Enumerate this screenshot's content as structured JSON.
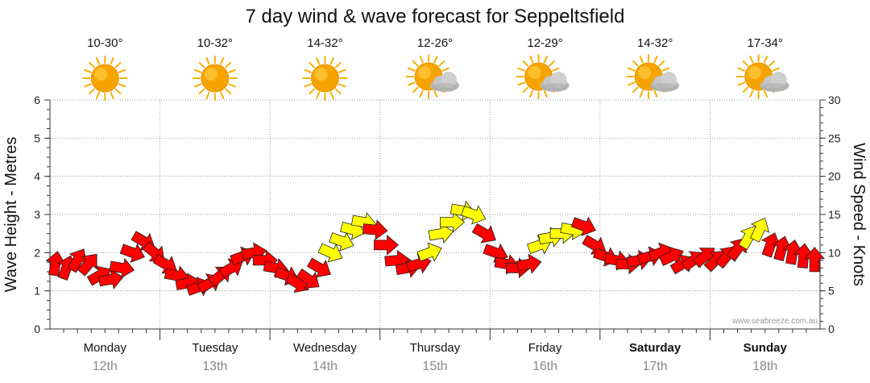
{
  "chart_data": {
    "type": "line",
    "title": "7 day wind & wave forecast for Seppeltsfield",
    "ylabel_left": "Wave Height - Metres",
    "ylabel_right": "Wind Speed - Knots",
    "ylim_left": [
      0,
      6
    ],
    "ylim_right": [
      0,
      30
    ],
    "yticks_left": [
      "0",
      "1",
      "2",
      "3",
      "4",
      "5",
      "6"
    ],
    "yticks_right": [
      "0",
      "5",
      "10",
      "15",
      "20",
      "25",
      "30"
    ],
    "credit": "www.seabreeze.com.au",
    "colors": {
      "strong": "#ff0000",
      "moderate": "#ffff00",
      "outline": "#222222",
      "grid": "#9a9a9a",
      "sun": "#f7a400",
      "cloud": "#b8b8b8"
    },
    "days": [
      {
        "name": "Monday",
        "date": "12th",
        "temp": "10-30°",
        "icon": "sun-icon",
        "bold": false
      },
      {
        "name": "Tuesday",
        "date": "13th",
        "temp": "10-32°",
        "icon": "sun-icon",
        "bold": false
      },
      {
        "name": "Wednesday",
        "date": "14th",
        "temp": "14-32°",
        "icon": "sun-icon",
        "bold": false
      },
      {
        "name": "Thursday",
        "date": "15th",
        "temp": "12-26°",
        "icon": "sun-cloud-icon",
        "bold": false
      },
      {
        "name": "Friday",
        "date": "16th",
        "temp": "12-29°",
        "icon": "sun-cloud-icon",
        "bold": false
      },
      {
        "name": "Saturday",
        "date": "17th",
        "temp": "14-32°",
        "icon": "sun-cloud-icon",
        "bold": true
      },
      {
        "name": "Sunday",
        "date": "18th",
        "temp": "17-34°",
        "icon": "sun-cloud-icon",
        "bold": true
      }
    ],
    "wind_unit": "knots",
    "wind_series": {
      "name": "Wind Speed (knots)",
      "x_days": [
        0.05,
        0.15,
        0.25,
        0.35,
        0.45,
        0.55,
        0.65,
        0.75,
        0.85,
        0.95,
        1.05,
        1.15,
        1.25,
        1.35,
        1.45,
        1.55,
        1.65,
        1.75,
        1.85,
        1.95,
        2.05,
        2.15,
        2.25,
        2.35,
        2.45,
        2.55,
        2.65,
        2.75,
        2.85,
        2.95,
        3.05,
        3.15,
        3.25,
        3.35,
        3.45,
        3.55,
        3.65,
        3.75,
        3.85,
        3.95,
        4.05,
        4.15,
        4.25,
        4.35,
        4.45,
        4.55,
        4.65,
        4.75,
        4.85,
        4.95,
        5.05,
        5.15,
        5.25,
        5.35,
        5.45,
        5.55,
        5.65,
        5.75,
        5.85,
        5.95,
        6.05,
        6.15,
        6.25,
        6.35,
        6.45,
        6.55,
        6.65,
        6.75,
        6.85,
        6.95
      ],
      "speed": [
        8.5,
        8,
        9,
        8.5,
        7,
        6.5,
        8,
        10,
        11.5,
        10,
        8.5,
        7,
        6,
        5.5,
        6,
        7,
        8,
        9.5,
        10,
        9,
        8,
        7,
        6,
        6.5,
        8,
        10,
        11.5,
        13,
        14,
        13,
        11,
        9,
        8,
        8.5,
        10,
        12.5,
        14,
        15.5,
        15,
        12.5,
        10,
        8.5,
        8,
        8.5,
        11,
        12,
        12.5,
        13,
        13.5,
        11,
        9.5,
        9,
        8.5,
        9,
        9.5,
        10,
        9.5,
        8.5,
        9,
        9.5,
        9,
        9.5,
        10.5,
        12,
        13,
        11,
        10.5,
        10,
        9.5,
        9
      ],
      "direction_deg": [
        100,
        110,
        120,
        130,
        150,
        170,
        190,
        200,
        210,
        220,
        210,
        190,
        170,
        160,
        150,
        140,
        150,
        160,
        170,
        180,
        190,
        200,
        210,
        215,
        210,
        205,
        200,
        195,
        190,
        185,
        180,
        175,
        170,
        165,
        160,
        170,
        180,
        190,
        200,
        210,
        200,
        190,
        180,
        170,
        160,
        170,
        180,
        190,
        200,
        210,
        200,
        190,
        180,
        170,
        165,
        160,
        155,
        150,
        145,
        140,
        135,
        130,
        125,
        120,
        115,
        110,
        105,
        100,
        95,
        90
      ],
      "moderate_min_knots": 12
    }
  }
}
